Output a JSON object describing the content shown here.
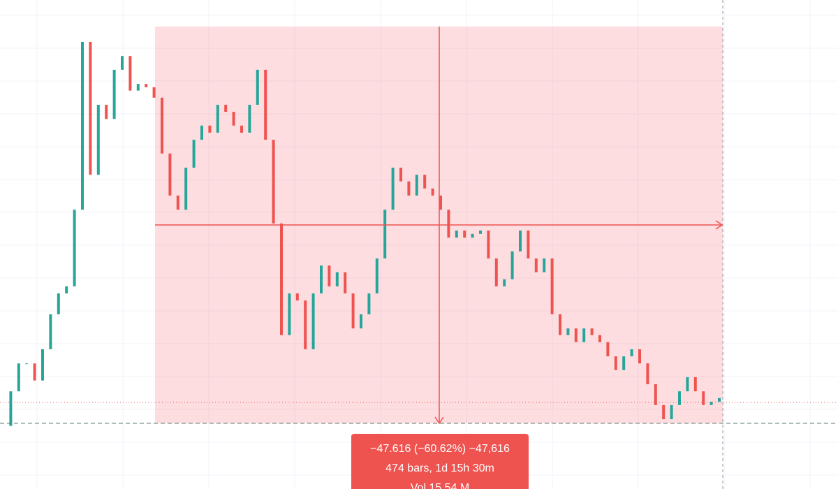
{
  "chart_data": {
    "type": "candlestick",
    "ylim": [
      15.15,
      132.55
    ],
    "up_color": "#26a69a",
    "down_color": "#ef5350",
    "close": [
      30.3,
      38.6,
      45.3,
      45.3,
      41.2,
      48.7,
      57.1,
      62.1,
      63.8,
      82.2,
      122.5,
      90.6,
      107.4,
      104.0,
      115.8,
      119.1,
      110.8,
      112.4,
      111.6,
      109.1,
      95.7,
      85.6,
      82.2,
      92.3,
      99.0,
      102.4,
      100.7,
      107.4,
      105.7,
      102.4,
      100.7,
      107.4,
      115.8,
      99.0,
      78.9,
      52.1,
      62.1,
      60.4,
      48.7,
      62.1,
      68.8,
      63.8,
      67.2,
      62.1,
      53.7,
      57.1,
      62.1,
      70.5,
      82.2,
      92.3,
      89.0,
      85.6,
      90.6,
      87.3,
      85.6,
      82.2,
      75.5,
      77.2,
      75.5,
      76.4,
      77.2,
      70.5,
      63.8,
      65.5,
      72.2,
      77.2,
      70.5,
      67.2,
      70.5,
      57.1,
      52.1,
      53.7,
      50.4,
      53.7,
      52.1,
      50.4,
      47.0,
      43.7,
      47.0,
      48.7,
      45.3,
      40.3,
      35.3,
      31.9,
      35.3,
      38.6,
      42.0,
      38.6,
      35.3,
      36.1,
      37.0
    ],
    "measure": {
      "lines": [
        "−47.616 (−60.62%) −47,616",
        "474 bars, 1d 15h 30m",
        "Vol 15.54 M"
      ],
      "color": "#ef5350"
    }
  }
}
